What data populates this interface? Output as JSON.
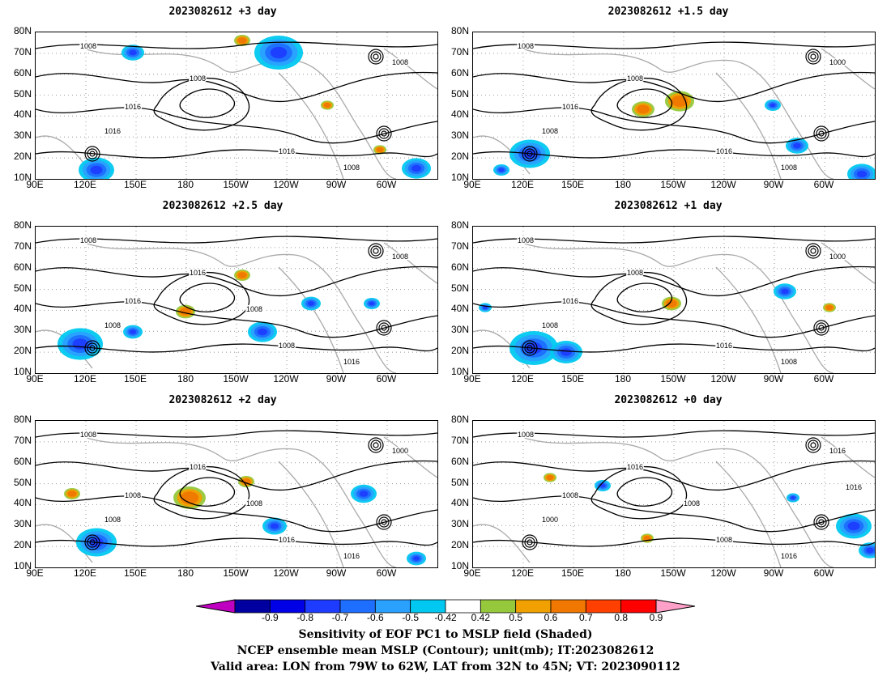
{
  "panels": [
    {
      "title": "2023082612 +3 day",
      "lows": [
        "1008",
        "1008",
        "1016",
        "1008",
        "1016",
        "1016",
        "1008"
      ]
    },
    {
      "title": "2023082612 +1.5 day",
      "lows": [
        "1008",
        "1008",
        "1016",
        "1000",
        "1016",
        "1008",
        "1008"
      ]
    },
    {
      "title": "2023082612 +2.5 day",
      "lows": [
        "1008",
        "1016",
        "1016",
        "1008",
        "1008",
        "1008",
        "1016",
        "1008"
      ]
    },
    {
      "title": "2023082612 +1 day",
      "lows": [
        "1008",
        "1008",
        "1016",
        "1000",
        "1016",
        "1008",
        "1008"
      ]
    },
    {
      "title": "2023082612 +2 day",
      "lows": [
        "1008",
        "1016",
        "1008",
        "1000",
        "1016",
        "1008",
        "1016",
        "1008"
      ]
    },
    {
      "title": "2023082612 +0 day",
      "lows": [
        "1008",
        "1016",
        "1008",
        "1016",
        "1008",
        "1000",
        "1016",
        "1008",
        "1016"
      ]
    }
  ],
  "axes": {
    "lat_ticks": [
      "80N",
      "70N",
      "60N",
      "50N",
      "40N",
      "30N",
      "20N",
      "10N"
    ],
    "lon_ticks": [
      "90E",
      "120E",
      "150E",
      "180",
      "150W",
      "120W",
      "90W",
      "60W"
    ]
  },
  "colorbar": {
    "labels": [
      "-0.9",
      "-0.8",
      "-0.7",
      "-0.6",
      "-0.5",
      "-0.42",
      "0.42",
      "0.5",
      "0.6",
      "0.7",
      "0.8",
      "0.9"
    ],
    "colors": [
      "#c000c0",
      "#0000a0",
      "#0000e6",
      "#1e3cff",
      "#1e6eff",
      "#2aa0ff",
      "#00c8f0",
      "#ffffff",
      "#96c83c",
      "#f0a000",
      "#f07800",
      "#ff4000",
      "#ff0000",
      "#ffa0c8"
    ]
  },
  "caption": {
    "line1": "Sensitivity of EOF PC1 to MSLP field (Shaded)",
    "line2": "NCEP ensemble mean MSLP (Contour); unit(mb); IT:2023082612",
    "line3": "Valid area: LON from 79W to 62W, LAT from 32N to 45N; VT: 2023090112"
  }
}
